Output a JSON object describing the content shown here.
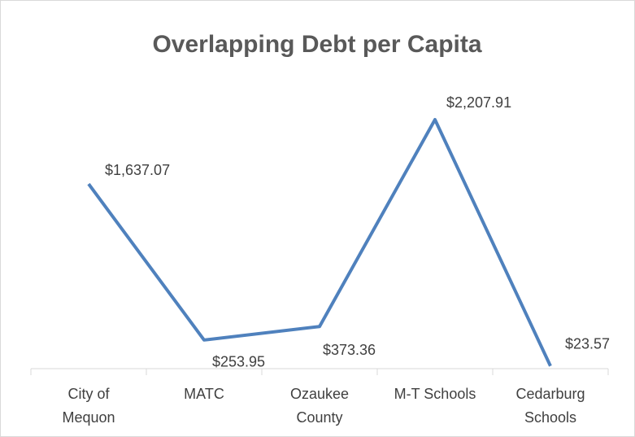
{
  "chart_data": {
    "type": "line",
    "title": "Overlapping Debt per Capita",
    "categories": [
      "City of Mequon",
      "MATC",
      "Ozaukee County",
      "M-T Schools",
      "Cedarburg Schools"
    ],
    "values": [
      1637.07,
      253.95,
      373.36,
      2207.91,
      23.57
    ],
    "value_labels": [
      "$1,637.07",
      "$253.95",
      "$373.36",
      "$2,207.91",
      "$23.57"
    ],
    "color": "#4f81bd"
  }
}
